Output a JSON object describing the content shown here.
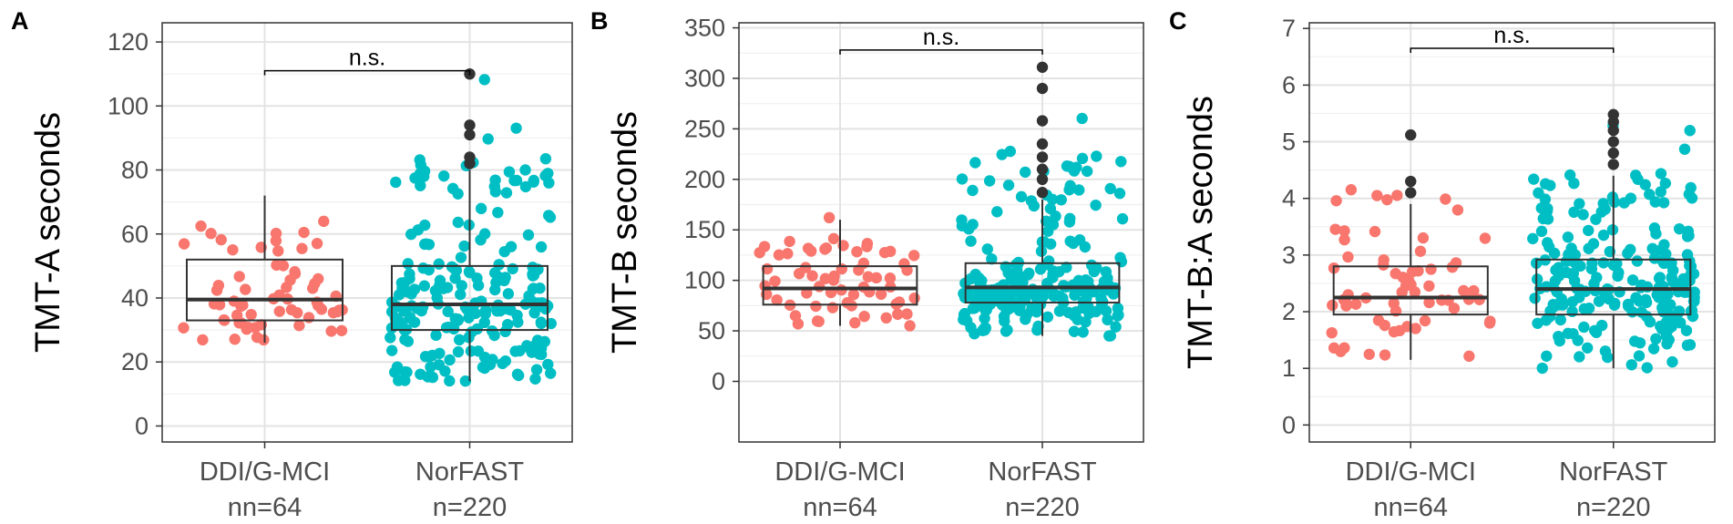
{
  "chart_data": [
    {
      "type": "boxplot",
      "panel_label": "A",
      "ylabel": "TMT-A seconds",
      "ylim": [
        -5,
        126
      ],
      "yticks": [
        0,
        20,
        40,
        60,
        80,
        100,
        120
      ],
      "ytick_labels": [
        "0",
        "20",
        "40",
        "60",
        "80",
        "100",
        "120"
      ],
      "categories": [
        "DDI/G-MCI",
        "NorFAST"
      ],
      "n_labels": [
        "nn=64",
        "n=220"
      ],
      "colors": [
        "#F8766D",
        "#00BFC4"
      ],
      "outlier_color": "#333333",
      "significance": {
        "label": "n.s.",
        "y": 111
      },
      "boxes": [
        {
          "group": "DDI/G-MCI",
          "q1": 33,
          "median": 39.5,
          "q3": 52,
          "whisker_low": 26,
          "whisker_high": 72,
          "outliers": []
        },
        {
          "group": "NorFAST",
          "q1": 30,
          "median": 38,
          "q3": 50,
          "whisker_low": 14,
          "whisker_high": 80,
          "outliers": [
            82,
            84,
            91,
            94,
            110
          ]
        }
      ],
      "points_range": [
        [
          26,
          72
        ],
        [
          14,
          110
        ]
      ]
    },
    {
      "type": "boxplot",
      "panel_label": "B",
      "ylabel": "TMT-B seconds",
      "ylim": [
        -60,
        355
      ],
      "yticks": [
        0,
        50,
        100,
        150,
        200,
        250,
        300,
        350
      ],
      "ytick_labels": [
        "0",
        "50",
        "100",
        "150",
        "200",
        "250",
        "300",
        "350"
      ],
      "categories": [
        "DDI/G-MCI",
        "NorFAST"
      ],
      "n_labels": [
        "nn=64",
        "n=220"
      ],
      "colors": [
        "#F8766D",
        "#00BFC4"
      ],
      "outlier_color": "#333333",
      "significance": {
        "label": "n.s.",
        "y": 328
      },
      "boxes": [
        {
          "group": "DDI/G-MCI",
          "q1": 76,
          "median": 92,
          "q3": 114,
          "whisker_low": 55,
          "whisker_high": 160,
          "outliers": []
        },
        {
          "group": "NorFAST",
          "q1": 78,
          "median": 93,
          "q3": 117,
          "whisker_low": 45,
          "whisker_high": 180,
          "outliers": [
            187,
            200,
            210,
            222,
            235,
            258,
            290,
            311
          ]
        }
      ],
      "points_range": [
        [
          55,
          165
        ],
        [
          45,
          312
        ]
      ]
    },
    {
      "type": "boxplot",
      "panel_label": "C",
      "ylabel": "TMT-B:A seconds",
      "ylim": [
        -0.3,
        7.1
      ],
      "yticks": [
        0,
        1,
        2,
        3,
        4,
        5,
        6,
        7
      ],
      "ytick_labels": [
        "0",
        "1",
        "2",
        "3",
        "4",
        "5",
        "6",
        "7"
      ],
      "categories": [
        "DDI/G-MCI",
        "NorFAST"
      ],
      "n_labels": [
        "nn=64",
        "n=220"
      ],
      "colors": [
        "#F8766D",
        "#00BFC4"
      ],
      "outlier_color": "#333333",
      "significance": {
        "label": "n.s.",
        "y": 6.65
      },
      "boxes": [
        {
          "group": "DDI/G-MCI",
          "q1": 1.95,
          "median": 2.25,
          "q3": 2.8,
          "whisker_low": 1.15,
          "whisker_high": 3.9,
          "outliers": [
            4.1,
            4.3,
            5.12
          ]
        },
        {
          "group": "NorFAST",
          "q1": 1.95,
          "median": 2.4,
          "q3": 2.92,
          "whisker_low": 1.0,
          "whisker_high": 4.4,
          "outliers": [
            4.6,
            4.8,
            5.0,
            5.2,
            5.35,
            5.48
          ]
        }
      ],
      "points_range": [
        [
          1.1,
          5.15
        ],
        [
          1.0,
          5.52
        ]
      ]
    }
  ]
}
